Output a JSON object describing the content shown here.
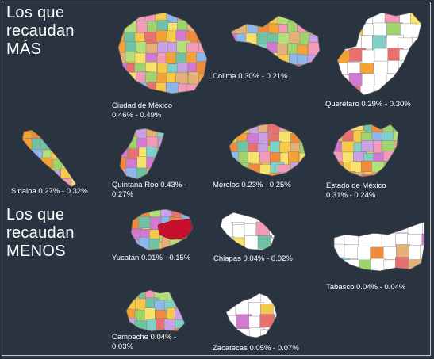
{
  "headings": {
    "mas": [
      "Los que",
      "recaudan",
      "MÁS"
    ],
    "menos": [
      "Los que",
      "recaudan",
      "MENOS"
    ]
  },
  "regions": [
    {
      "id": "cdmx",
      "line1": "Ciudad de México",
      "line2": "0.46% - 0.49%",
      "tone": "multicolor"
    },
    {
      "id": "colima",
      "line1": "Colima 0.30% - 0.21%",
      "line2": "",
      "tone": "multicolor"
    },
    {
      "id": "queretaro",
      "line1": "Querétaro 0.29% - 0.30%",
      "line2": "",
      "tone": "white"
    },
    {
      "id": "sinaloa",
      "line1": "Sinaloa 0.27% -  0.32%",
      "line2": "",
      "tone": "multicolor"
    },
    {
      "id": "qroo",
      "line1": "Quintana Roo 0.43% -",
      "line2": "0.27%",
      "tone": "multicolor"
    },
    {
      "id": "morelos",
      "line1": "Morelos 0.23% - 0.25%",
      "line2": "",
      "tone": "multicolor"
    },
    {
      "id": "edomex",
      "line1": "Estado de México",
      "line2": "0.31% - 0.24%",
      "tone": "multicolor"
    },
    {
      "id": "yucatan",
      "line1": "Yucatán 0.01% - 0.15%",
      "line2": "",
      "tone": "multicolor"
    },
    {
      "id": "chiapas",
      "line1": "Chiapas 0.04% - 0.02%",
      "line2": "",
      "tone": "white"
    },
    {
      "id": "tabasco",
      "line1": "Tabasco 0.04% - 0.04%",
      "line2": "",
      "tone": "white"
    },
    {
      "id": "campeche",
      "line1": "Campeche 0.04% -",
      "line2": "0.03%",
      "tone": "multicolor"
    },
    {
      "id": "zacatecas",
      "line1": "Zacatecas 0.05% - 0.07%",
      "line2": "",
      "tone": "white"
    }
  ],
  "palette": [
    "#f4a236",
    "#f6c94a",
    "#e8706e",
    "#9fd36b",
    "#7fd0c8",
    "#d27ad1",
    "#f29ab8",
    "#8fb6e8",
    "#f7e26b",
    "#b3e07a",
    "#f08a3c",
    "#c9a0e4",
    "#6fc3a3",
    "#e6b07a"
  ],
  "accent_red": "#c8102e"
}
